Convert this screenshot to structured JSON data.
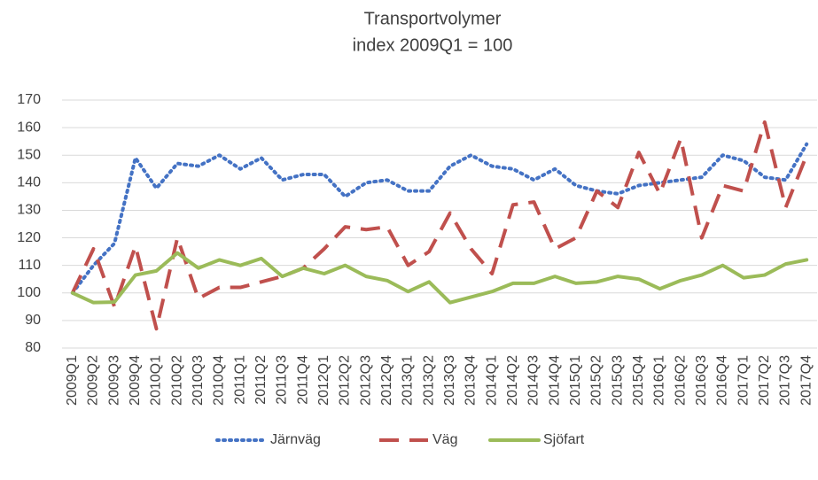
{
  "chart_data": {
    "type": "line",
    "title": "Transportvolymer",
    "subtitle": "index 2009Q1 = 100",
    "categories": [
      "2009Q1",
      "2009Q2",
      "2009Q3",
      "2009Q4",
      "2010Q1",
      "2010Q2",
      "2010Q3",
      "2010Q4",
      "2011Q1",
      "2011Q2",
      "2011Q3",
      "2011Q4",
      "2012Q1",
      "2012Q2",
      "2012Q3",
      "2012Q4",
      "2013Q1",
      "2013Q2",
      "2013Q3",
      "2013Q4",
      "2014Q1",
      "2014Q2",
      "2014Q3",
      "2014Q4",
      "2015Q1",
      "2015Q2",
      "2015Q3",
      "2015Q4",
      "2016Q1",
      "2016Q2",
      "2016Q3",
      "2016Q4",
      "2017Q1",
      "2017Q2",
      "2017Q3",
      "2017Q4"
    ],
    "series": [
      {
        "name": "Järnväg",
        "color": "#4472c4",
        "dash": "dotted",
        "values": [
          100,
          110,
          118,
          149,
          138,
          147,
          146,
          150,
          145,
          149,
          141,
          143,
          143,
          135,
          140,
          141,
          137,
          137,
          146,
          150,
          146,
          145,
          141,
          145,
          139,
          137,
          136,
          139,
          140,
          141,
          142,
          150,
          148,
          142,
          141,
          154
        ]
      },
      {
        "name": "Väg",
        "color": "#c0504d",
        "dash": "dashed",
        "values": [
          100,
          116,
          95,
          117,
          87,
          120,
          98,
          102,
          102,
          104,
          106,
          109,
          116,
          124,
          123,
          124,
          110,
          115,
          129,
          116,
          107,
          132,
          133,
          116,
          120,
          137,
          131,
          151,
          136,
          156,
          120,
          139,
          137,
          162,
          131,
          150
        ]
      },
      {
        "name": "Sjöfart",
        "color": "#9bbb59",
        "dash": "solid",
        "values": [
          100,
          96.5,
          96.7,
          106.5,
          108,
          114.5,
          109,
          112,
          110,
          112.5,
          106,
          109,
          107,
          110,
          106,
          104.5,
          100.5,
          104,
          96.5,
          98.5,
          100.5,
          103.5,
          103.5,
          106,
          103.5,
          104,
          106,
          105,
          101.5,
          104.5,
          106.5,
          110,
          105.5,
          106.5,
          110.5,
          112
        ]
      }
    ],
    "ylim": [
      80,
      170
    ],
    "yticks": [
      80,
      90,
      100,
      110,
      120,
      130,
      140,
      150,
      160,
      170
    ],
    "grid": true,
    "legend": "bottom"
  }
}
